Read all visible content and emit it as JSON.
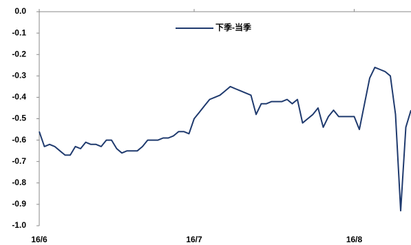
{
  "chart_data": {
    "type": "line",
    "categories": [
      "16/6",
      null,
      null,
      null,
      null,
      null,
      null,
      null,
      null,
      null,
      null,
      null,
      null,
      null,
      null,
      null,
      null,
      null,
      null,
      null,
      null,
      null,
      null,
      null,
      null,
      null,
      null,
      null,
      null,
      null,
      "16/7",
      null,
      null,
      null,
      null,
      null,
      null,
      null,
      null,
      null,
      null,
      null,
      null,
      null,
      null,
      null,
      null,
      null,
      null,
      null,
      null,
      null,
      null,
      null,
      null,
      null,
      null,
      null,
      null,
      null,
      null,
      "16/8",
      null,
      null,
      null,
      null,
      null,
      null,
      null,
      null,
      null,
      null,
      null
    ],
    "series": [
      {
        "name": "下季-当季",
        "color": "#1f3a6e",
        "values": [
          -0.56,
          -0.63,
          -0.62,
          -0.63,
          -0.65,
          -0.67,
          -0.67,
          -0.63,
          -0.64,
          -0.61,
          -0.62,
          -0.62,
          -0.63,
          -0.6,
          -0.6,
          -0.64,
          -0.66,
          -0.65,
          -0.65,
          -0.65,
          -0.63,
          -0.6,
          -0.6,
          -0.6,
          -0.59,
          -0.59,
          -0.58,
          -0.56,
          -0.56,
          -0.57,
          -0.5,
          -0.47,
          -0.44,
          -0.41,
          -0.4,
          -0.39,
          -0.37,
          -0.35,
          -0.36,
          -0.37,
          -0.38,
          -0.39,
          -0.48,
          -0.43,
          -0.43,
          -0.42,
          -0.42,
          -0.42,
          -0.41,
          -0.43,
          -0.41,
          -0.52,
          -0.5,
          -0.48,
          -0.45,
          -0.54,
          -0.49,
          -0.46,
          -0.49,
          -0.49,
          -0.49,
          -0.49,
          -0.55,
          -0.43,
          -0.31,
          -0.26,
          -0.27,
          -0.28,
          -0.3,
          -0.48,
          -0.93,
          -0.54,
          -0.46
        ]
      }
    ],
    "ylim": [
      -1,
      0
    ],
    "yticks": [
      {
        "value": 0,
        "label": "0.0"
      },
      -0.1,
      -0.2,
      -0.3,
      -0.4,
      -0.5,
      -0.6,
      -0.7,
      -0.8,
      -0.9,
      {
        "value": -1,
        "label": "-1.0"
      }
    ],
    "legend": "top-center"
  }
}
